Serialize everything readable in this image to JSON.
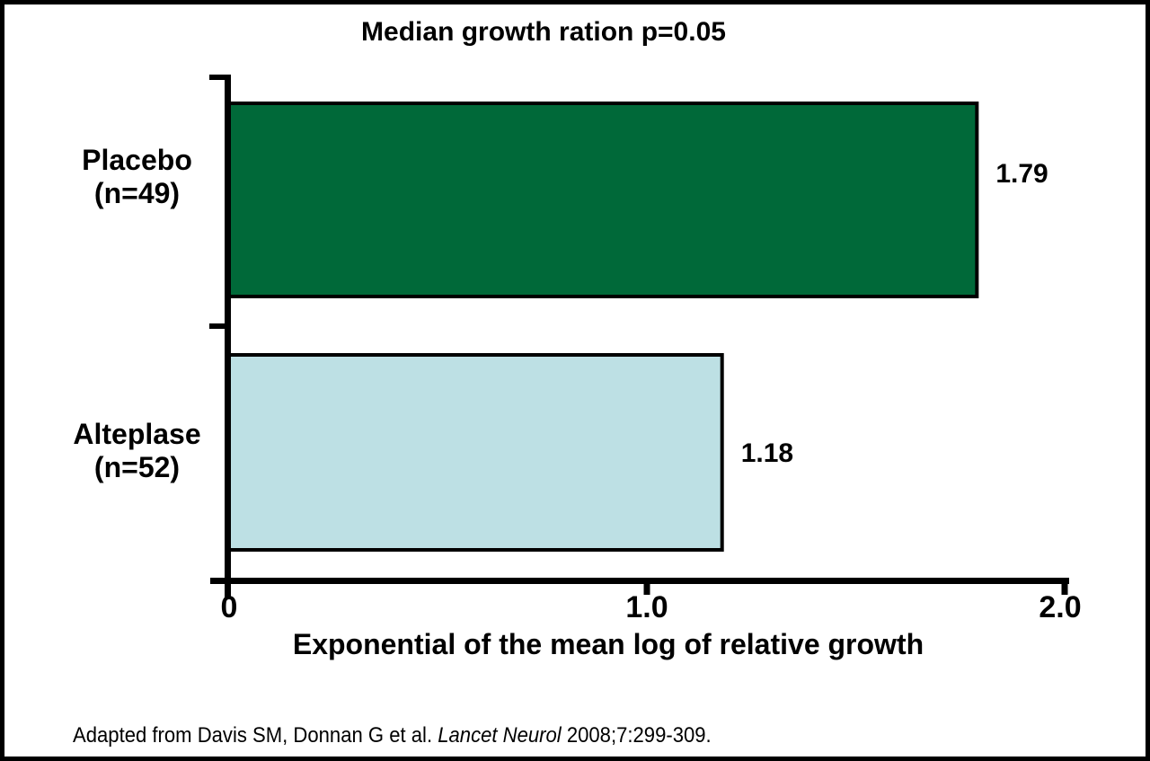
{
  "page": {
    "background": "#ffffff",
    "frame_border_color": "#000000"
  },
  "chart_data": {
    "type": "bar",
    "orientation": "horizontal",
    "title": "Median growth ration p=0.05",
    "xlabel": "Exponential of the mean log of relative growth",
    "xlim": [
      0,
      2.0
    ],
    "grid": false,
    "legend": "none",
    "axis_color": "#000000",
    "bar_outline_color": "#000000",
    "xticks": [
      {
        "value": 0,
        "label": "0"
      },
      {
        "value": 1.0,
        "label": "1.0"
      },
      {
        "value": 2.0,
        "label": "2.0"
      }
    ],
    "bars": [
      {
        "category_lines": [
          "Placebo",
          "(n=49)"
        ],
        "value": 1.79,
        "value_label": "1.79",
        "color": "#006939"
      },
      {
        "category_lines": [
          "Alteplase",
          "(n=52)"
        ],
        "value": 1.18,
        "value_label": "1.18",
        "color": "#BDE0E4"
      }
    ]
  },
  "footer": {
    "prefix": "Adapted from Davis SM, Donnan G et al. ",
    "italic": "Lancet Neurol",
    "suffix": " 2008;7:299-309."
  }
}
